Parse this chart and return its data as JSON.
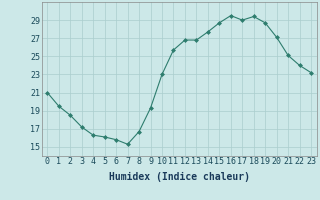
{
  "x": [
    0,
    1,
    2,
    3,
    4,
    5,
    6,
    7,
    8,
    9,
    10,
    11,
    12,
    13,
    14,
    15,
    16,
    17,
    18,
    19,
    20,
    21,
    22,
    23
  ],
  "y": [
    21,
    19.5,
    18.5,
    17.2,
    16.3,
    16.1,
    15.8,
    15.3,
    16.7,
    19.3,
    23.0,
    25.7,
    26.8,
    26.8,
    27.7,
    28.7,
    29.5,
    29.0,
    29.4,
    28.7,
    27.1,
    25.1,
    24.0,
    23.2
  ],
  "line_color": "#2e7d6e",
  "marker_color": "#2e7d6e",
  "bg_color": "#cce8e8",
  "grid_color": "#aacece",
  "xlabel": "Humidex (Indice chaleur)",
  "ylim": [
    14,
    31
  ],
  "xlim": [
    -0.5,
    23.5
  ],
  "yticks": [
    15,
    17,
    19,
    21,
    23,
    25,
    27,
    29
  ],
  "xticks": [
    0,
    1,
    2,
    3,
    4,
    5,
    6,
    7,
    8,
    9,
    10,
    11,
    12,
    13,
    14,
    15,
    16,
    17,
    18,
    19,
    20,
    21,
    22,
    23
  ],
  "xtick_labels": [
    "0",
    "1",
    "2",
    "3",
    "4",
    "5",
    "6",
    "7",
    "8",
    "9",
    "10",
    "11",
    "12",
    "13",
    "14",
    "15",
    "16",
    "17",
    "18",
    "19",
    "20",
    "21",
    "22",
    "23"
  ],
  "axis_fontsize": 6.5,
  "tick_fontsize": 6.0,
  "xlabel_fontsize": 7.0
}
